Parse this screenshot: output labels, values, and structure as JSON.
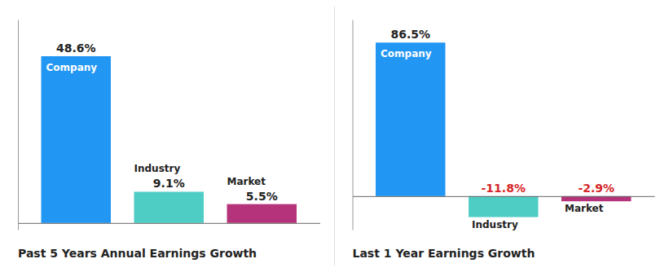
{
  "chart_data": [
    {
      "type": "bar",
      "title": "Past 5 Years Annual Earnings Growth",
      "categories": [
        "Company",
        "Industry",
        "Market"
      ],
      "values": [
        48.6,
        9.1,
        5.5
      ],
      "value_labels": [
        "48.6%",
        "9.1%",
        "5.5%"
      ],
      "colors": [
        "#2196f3",
        "#4ecdc4",
        "#b5337a"
      ],
      "ylim": [
        -1.944,
        59.292
      ],
      "data_labels": true,
      "tick_labels": false,
      "grid": false
    },
    {
      "type": "bar",
      "title": "Last 1 Year Earnings Growth",
      "categories": [
        "Company",
        "Industry",
        "Market"
      ],
      "values": [
        86.5,
        -11.8,
        -2.9
      ],
      "value_labels": [
        "86.5%",
        "-11.8%",
        "-2.9%"
      ],
      "colors": [
        "#2196f3",
        "#4ecdc4",
        "#b5337a"
      ],
      "ylim": [
        -18.88,
        99.475
      ],
      "data_labels": true,
      "tick_labels": false,
      "grid": false
    }
  ]
}
